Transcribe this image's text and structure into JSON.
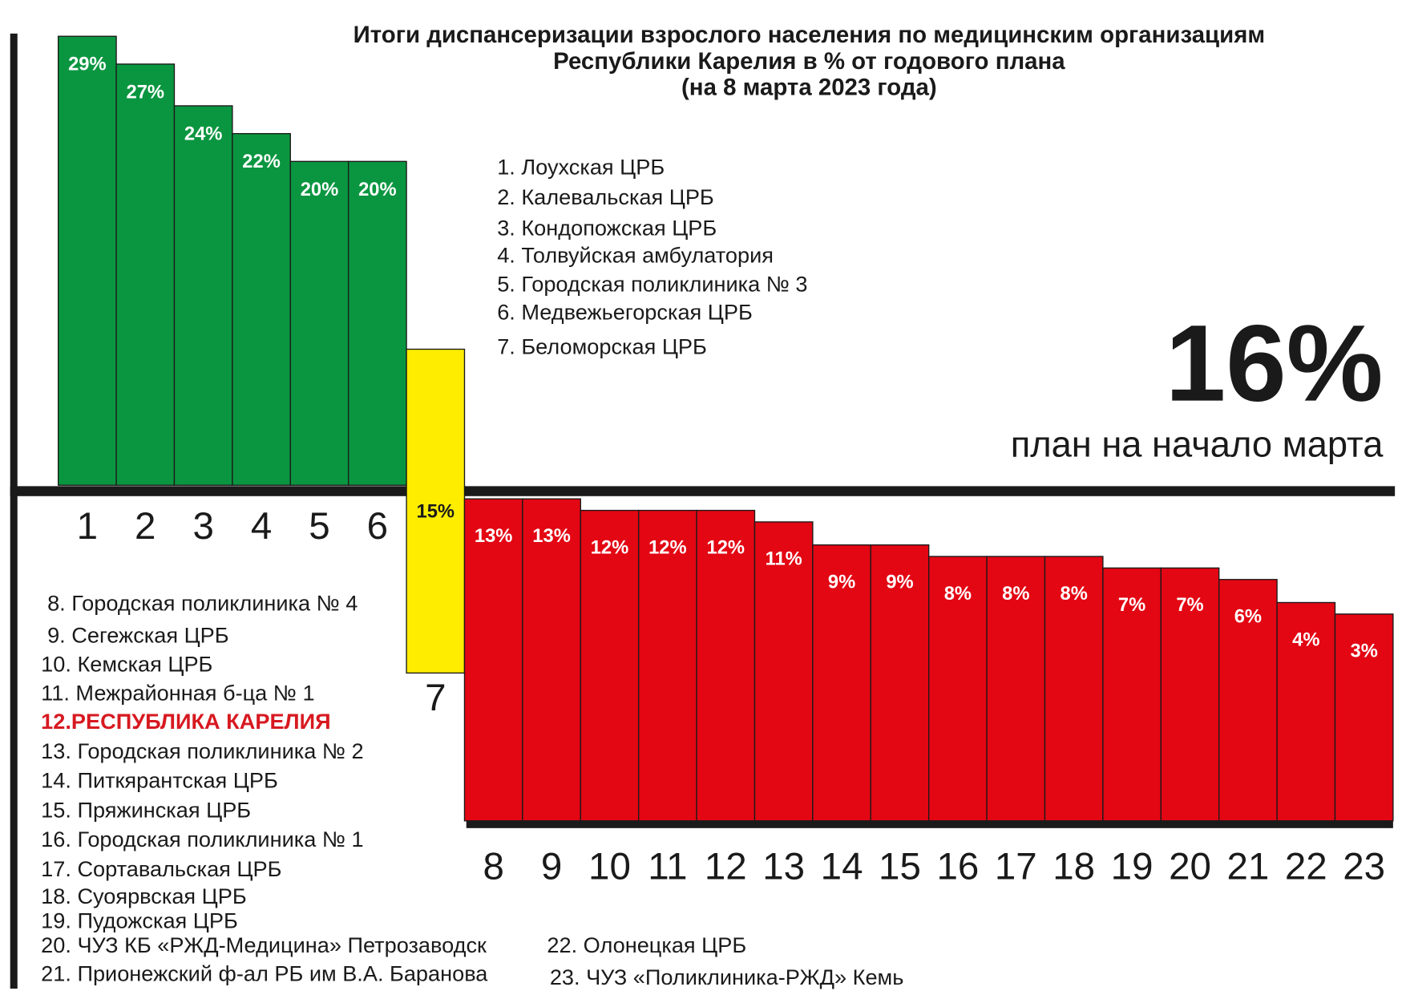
{
  "chart_data": {
    "type": "bar",
    "title": [
      "Итоги диспансеризации взрослого населения по медицинским организациям",
      "Республики Карелия в % от годового плана",
      "(на 8 марта 2023 года)"
    ],
    "categories": [
      "1",
      "2",
      "3",
      "4",
      "5",
      "6",
      "7",
      "8",
      "9",
      "10",
      "11",
      "12",
      "13",
      "14",
      "15",
      "16",
      "17",
      "18",
      "19",
      "20",
      "21",
      "22",
      "23"
    ],
    "values": [
      29,
      27,
      24,
      22,
      20,
      20,
      15,
      13,
      13,
      12,
      12,
      12,
      11,
      9,
      9,
      8,
      8,
      8,
      7,
      7,
      6,
      4,
      3
    ],
    "value_labels": [
      "29%",
      "27%",
      "24%",
      "22%",
      "20%",
      "20%",
      "15%",
      "13%",
      "13%",
      "12%",
      "12%",
      "12%",
      "11%",
      "9%",
      "9%",
      "8%",
      "8%",
      "8%",
      "7%",
      "7%",
      "6%",
      "4%",
      "3%"
    ],
    "colors": {
      "above": "#0a9640",
      "near": "#ffed00",
      "below": "#e30613"
    },
    "plan": {
      "value": 16,
      "label": "16%"
    },
    "plan_caption": "план на начало марта",
    "organizations": [
      "1. Лоухская ЦРБ",
      "2. Калевальская ЦРБ",
      "3. Кондопожская ЦРБ",
      "4. Толвуйская амбулатория",
      "5. Городская поликлиника № 3",
      "6. Медвежьегорская ЦРБ",
      "7. Беломорская ЦРБ",
      "8. Городская поликлиника № 4",
      "9. Сегежская ЦРБ",
      "10. Кемская ЦРБ",
      "11. Межрайонная б-ца № 1",
      "12.РЕСПУБЛИКА КАРЕЛИЯ",
      "13. Городская поликлиника № 2",
      "14. Питкярантская ЦРБ",
      "15. Пряжинская ЦРБ",
      "16. Городская поликлиника № 1",
      "17. Сортавальская ЦРБ",
      "18. Суоярвская ЦРБ",
      "19. Пудожская ЦРБ",
      "20. ЧУЗ КБ «РЖД-Медицина» Петрозаводск",
      "21. Прионежский ф-ал РБ им В.А. Баранова",
      "22. Олонецкая ЦРБ",
      "23. ЧУЗ «Поликлиника-РЖД» Кемь"
    ]
  }
}
